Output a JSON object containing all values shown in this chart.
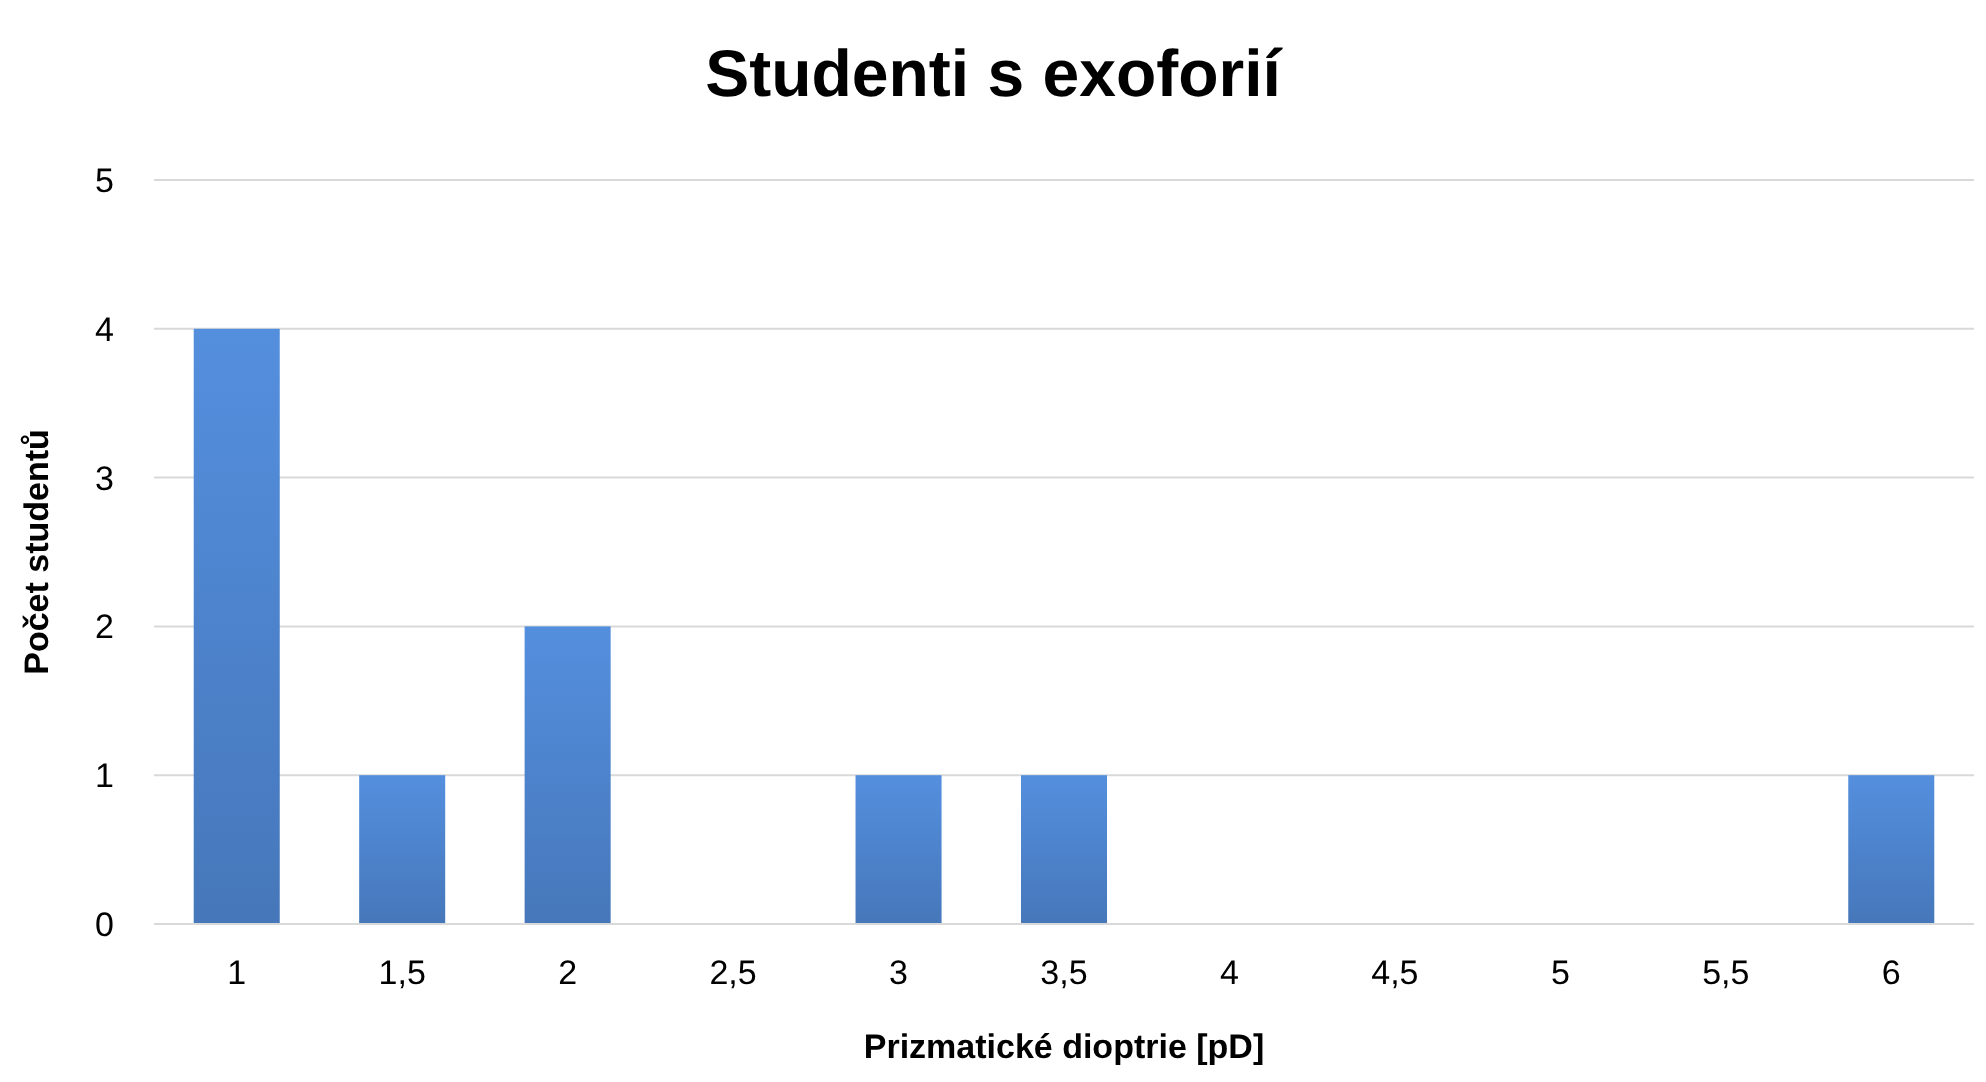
{
  "chart_data": {
    "type": "bar",
    "title": "Studenti s exoforií",
    "xlabel": "Prizmatické dioptrie [pD]",
    "ylabel": "Počet studentů",
    "categories": [
      "1",
      "1,5",
      "2",
      "2,5",
      "3",
      "3,5",
      "4",
      "4,5",
      "5",
      "5,5",
      "6"
    ],
    "values": [
      4,
      1,
      2,
      0,
      1,
      1,
      0,
      0,
      0,
      0,
      1
    ],
    "color": "#4a7ec4",
    "ylim": [
      0,
      5
    ],
    "yticks": [
      0,
      1,
      2,
      3,
      4,
      5
    ],
    "grid": "y"
  }
}
